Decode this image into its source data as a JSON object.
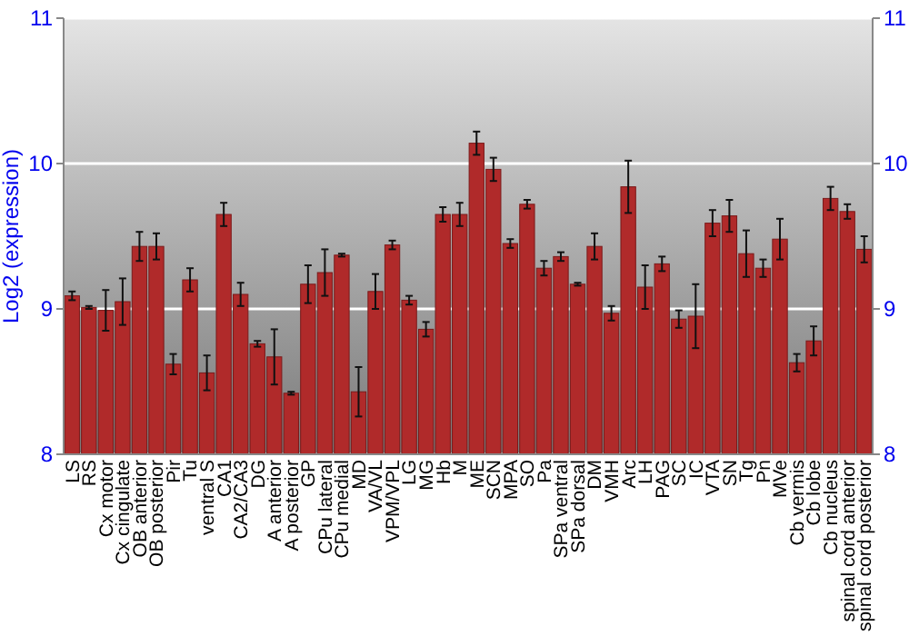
{
  "chart_data": {
    "type": "bar",
    "ylabel": "Log2 (expression)",
    "categories": [
      "LS",
      "RS",
      "Cx motor",
      "Cx cingulate",
      "OB anterior",
      "OB posterior",
      "Pir",
      "Tu",
      "ventral S",
      "CA1",
      "CA2/CA3",
      "DG",
      "A anterior",
      "A posterior",
      "GP",
      "CPu lateral",
      "CPu medial",
      "MD",
      "VA/VL",
      "VPM/VPL",
      "LG",
      "MG",
      "Hb",
      "M",
      "ME",
      "SCN",
      "MPA",
      "SO",
      "Pa",
      "SPa ventral",
      "SPa dorsal",
      "DM",
      "VMH",
      "Arc",
      "LH",
      "PAG",
      "SC",
      "IC",
      "VTA",
      "SN",
      "Tg",
      "Pn",
      "MVe",
      "Cb vermis",
      "Cb lobe",
      "Cb nucleus",
      "spinal cord anterior",
      "spinal cord posterior"
    ],
    "series": [
      {
        "color": "#b02a2a",
        "values": [
          9.09,
          9.01,
          8.99,
          9.05,
          9.43,
          9.43,
          8.62,
          9.2,
          8.56,
          9.65,
          9.1,
          8.76,
          8.67,
          8.42,
          9.17,
          9.25,
          9.37,
          8.43,
          9.12,
          9.44,
          9.06,
          8.86,
          9.65,
          9.65,
          10.14,
          9.96,
          9.45,
          9.72,
          9.28,
          9.36,
          9.17,
          9.43,
          8.97,
          9.84,
          9.15,
          9.31,
          8.93,
          8.95,
          9.59,
          9.64,
          9.38,
          9.28,
          9.48,
          8.63,
          8.78,
          9.76,
          9.67,
          9.41
        ],
        "errors": [
          0.03,
          0.01,
          0.14,
          0.16,
          0.1,
          0.09,
          0.07,
          0.08,
          0.12,
          0.08,
          0.08,
          0.02,
          0.19,
          0.01,
          0.13,
          0.16,
          0.01,
          0.17,
          0.12,
          0.03,
          0.03,
          0.05,
          0.05,
          0.08,
          0.08,
          0.08,
          0.03,
          0.03,
          0.05,
          0.03,
          0.01,
          0.09,
          0.05,
          0.18,
          0.15,
          0.05,
          0.06,
          0.22,
          0.09,
          0.11,
          0.16,
          0.06,
          0.14,
          0.06,
          0.1,
          0.08,
          0.05,
          0.09
        ]
      }
    ],
    "ylim": [
      8,
      11
    ],
    "yticks": [
      8,
      9,
      10,
      11
    ],
    "y2lim": [
      8,
      11
    ],
    "y2ticks": [
      8,
      9,
      10,
      11
    ],
    "grid": "y"
  }
}
